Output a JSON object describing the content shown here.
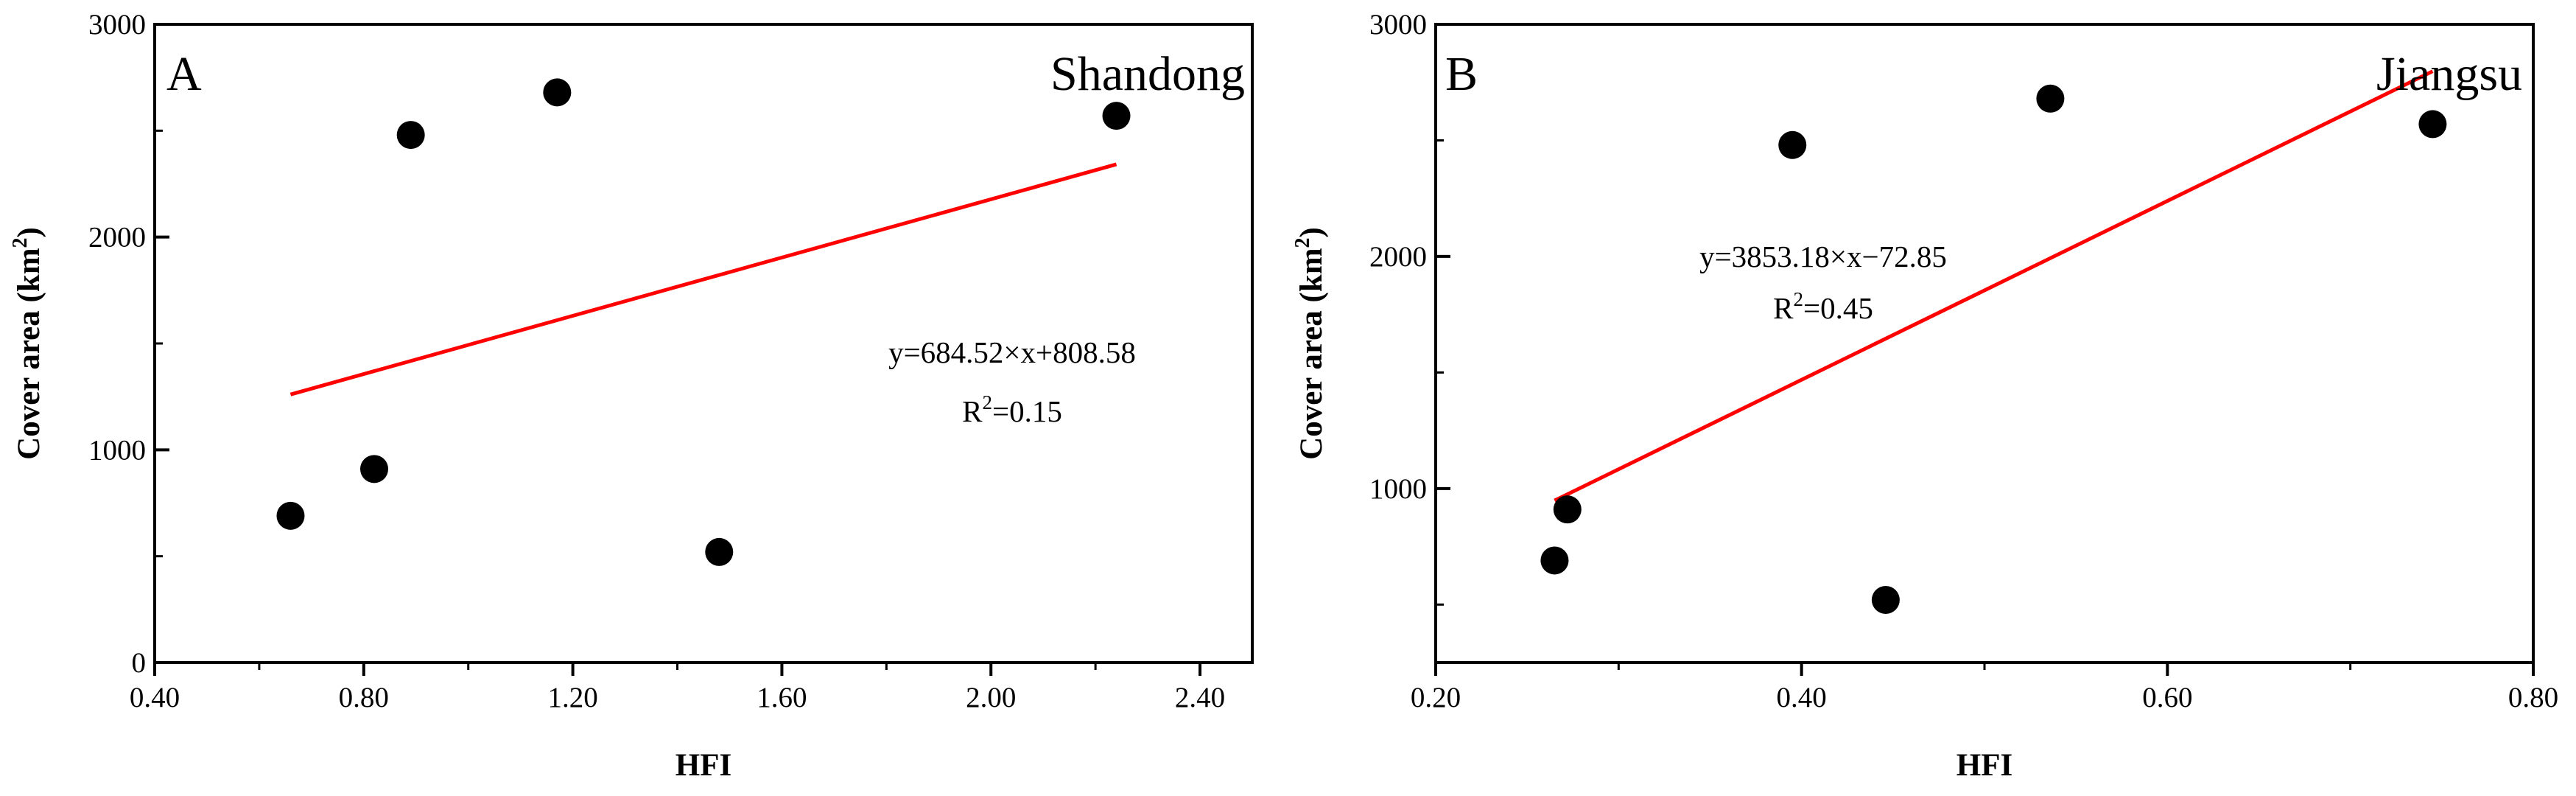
{
  "chart_data": [
    {
      "type": "scatter",
      "panel_label": "A",
      "title": "Shandong",
      "xlabel": "HFI",
      "ylabel_main": "Cover area (km",
      "ylabel_sup": "2",
      "ylabel_end": ")",
      "xlim": [
        0.4,
        2.5
      ],
      "ylim": [
        0,
        3000
      ],
      "xticks": [
        0.4,
        0.8,
        1.2,
        1.6,
        2.0,
        2.4
      ],
      "xtick_labels": [
        "0.40",
        "0.80",
        "1.20",
        "1.60",
        "2.00",
        "2.40"
      ],
      "xminor": [
        0.6,
        1.0,
        1.4,
        1.8,
        2.2
      ],
      "yticks": [
        0,
        1000,
        2000,
        3000
      ],
      "ytick_labels": [
        "0",
        "1000",
        "2000",
        "3000"
      ],
      "yminor": [
        500,
        1500,
        2500
      ],
      "points": [
        {
          "x": 0.66,
          "y": 690
        },
        {
          "x": 0.82,
          "y": 910
        },
        {
          "x": 0.89,
          "y": 2480
        },
        {
          "x": 1.17,
          "y": 2680
        },
        {
          "x": 1.48,
          "y": 520
        },
        {
          "x": 2.24,
          "y": 2570
        }
      ],
      "fit": {
        "slope": 684.52,
        "intercept": 808.58,
        "x_start": 0.66,
        "x_end": 2.24,
        "color": "#ff0000"
      },
      "equation": "y=684.52×x+808.58",
      "r2_prefix": "R",
      "r2_sup": "2",
      "r2_value": "=0.15",
      "grid": false
    },
    {
      "type": "scatter",
      "panel_label": "B",
      "title": "Jiangsu",
      "xlabel": "HFI",
      "ylabel_main": "Cover area (km",
      "ylabel_sup": "2",
      "ylabel_end": ")",
      "xlim": [
        0.2,
        0.8
      ],
      "ylim": [
        250,
        3000
      ],
      "xticks": [
        0.2,
        0.4,
        0.6,
        0.8
      ],
      "xtick_labels": [
        "0.20",
        "0.40",
        "0.60",
        "0.80"
      ],
      "xminor": [
        0.3,
        0.5,
        0.7
      ],
      "yticks": [
        1000,
        2000,
        3000
      ],
      "ytick_labels": [
        "1000",
        "2000",
        "3000"
      ],
      "yminor": [
        500,
        1500,
        2500
      ],
      "points": [
        {
          "x": 0.265,
          "y": 690
        },
        {
          "x": 0.272,
          "y": 910
        },
        {
          "x": 0.395,
          "y": 2480
        },
        {
          "x": 0.446,
          "y": 520
        },
        {
          "x": 0.536,
          "y": 2680
        },
        {
          "x": 0.745,
          "y": 2570
        }
      ],
      "fit": {
        "slope": 3853.18,
        "intercept": -72.85,
        "x_start": 0.265,
        "x_end": 0.745,
        "color": "#ff0000"
      },
      "equation": "y=3853.18×x−72.85",
      "r2_prefix": "R",
      "r2_sup": "2",
      "r2_value": "=0.45",
      "grid": false
    }
  ]
}
